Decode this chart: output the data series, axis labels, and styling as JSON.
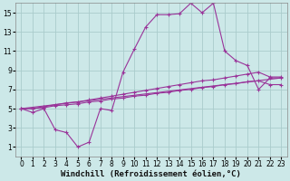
{
  "background_color": "#cce8e8",
  "grid_color": "#aacccc",
  "line_color": "#993399",
  "xlim": [
    -0.5,
    23.5
  ],
  "ylim": [
    0,
    16
  ],
  "xticks": [
    0,
    1,
    2,
    3,
    4,
    5,
    6,
    7,
    8,
    9,
    10,
    11,
    12,
    13,
    14,
    15,
    16,
    17,
    18,
    19,
    20,
    21,
    22,
    23
  ],
  "yticks": [
    1,
    3,
    5,
    7,
    9,
    11,
    13,
    15
  ],
  "xlabel": "Windchill (Refroidissement éolien,°C)",
  "series1_x": [
    0,
    1,
    2,
    3,
    4,
    5,
    6,
    7,
    8,
    9,
    10,
    11,
    12,
    13,
    14,
    15,
    16,
    17,
    18,
    19,
    20,
    21,
    22,
    23
  ],
  "series1_y": [
    5.0,
    4.6,
    5.0,
    2.8,
    2.5,
    1.0,
    1.5,
    5.0,
    4.8,
    8.8,
    11.2,
    13.5,
    14.8,
    14.8,
    14.9,
    16.0,
    15.0,
    16.0,
    11.0,
    10.0,
    9.5,
    7.0,
    8.2,
    8.2
  ],
  "series2_x": [
    0,
    23
  ],
  "series2_y": [
    5.0,
    8.2
  ],
  "series3_x": [
    0,
    1,
    2,
    3,
    4,
    5,
    6,
    7,
    8,
    9,
    10,
    11,
    12,
    13,
    14,
    15,
    16,
    17,
    18,
    19,
    20,
    21,
    22,
    23
  ],
  "series3_y": [
    5.0,
    5.0,
    5.2,
    5.4,
    5.6,
    5.7,
    5.9,
    6.1,
    6.3,
    6.5,
    6.7,
    6.9,
    7.1,
    7.3,
    7.5,
    7.7,
    7.9,
    8.0,
    8.2,
    8.4,
    8.6,
    8.8,
    8.3,
    8.3
  ],
  "series4_x": [
    0,
    1,
    2,
    3,
    4,
    5,
    6,
    7,
    8,
    9,
    10,
    11,
    12,
    13,
    14,
    15,
    16,
    17,
    18,
    19,
    20,
    21,
    22,
    23
  ],
  "series4_y": [
    5.0,
    5.0,
    5.1,
    5.3,
    5.4,
    5.5,
    5.7,
    5.8,
    6.0,
    6.1,
    6.3,
    6.4,
    6.6,
    6.7,
    6.9,
    7.0,
    7.2,
    7.3,
    7.5,
    7.6,
    7.8,
    7.9,
    7.5,
    7.5
  ],
  "tick_fontsize": 5.5,
  "xlabel_fontsize": 6.5
}
